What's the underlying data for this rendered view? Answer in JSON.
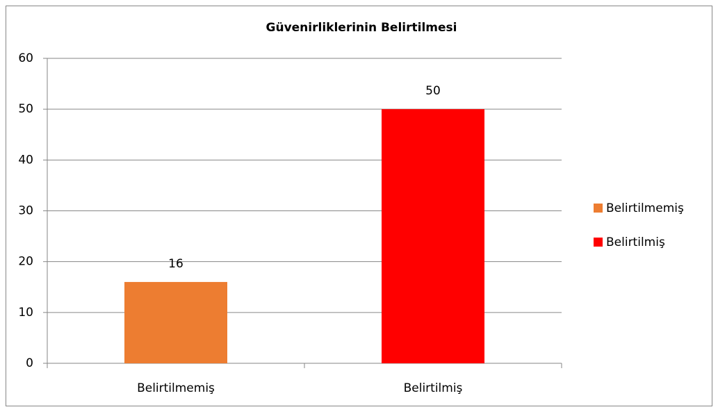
{
  "chart_data": {
    "type": "bar",
    "title": "Güvenirliklerinin Belirtilmesi",
    "categories": [
      "Belirtilmemiş",
      "Belirtilmiş"
    ],
    "values": [
      16,
      50
    ],
    "colors": [
      "#ed7d31",
      "#ff0000"
    ],
    "ylim": [
      0,
      60
    ],
    "yticks": [
      0,
      10,
      20,
      30,
      40,
      50,
      60
    ],
    "grid": true,
    "legend": "right"
  }
}
